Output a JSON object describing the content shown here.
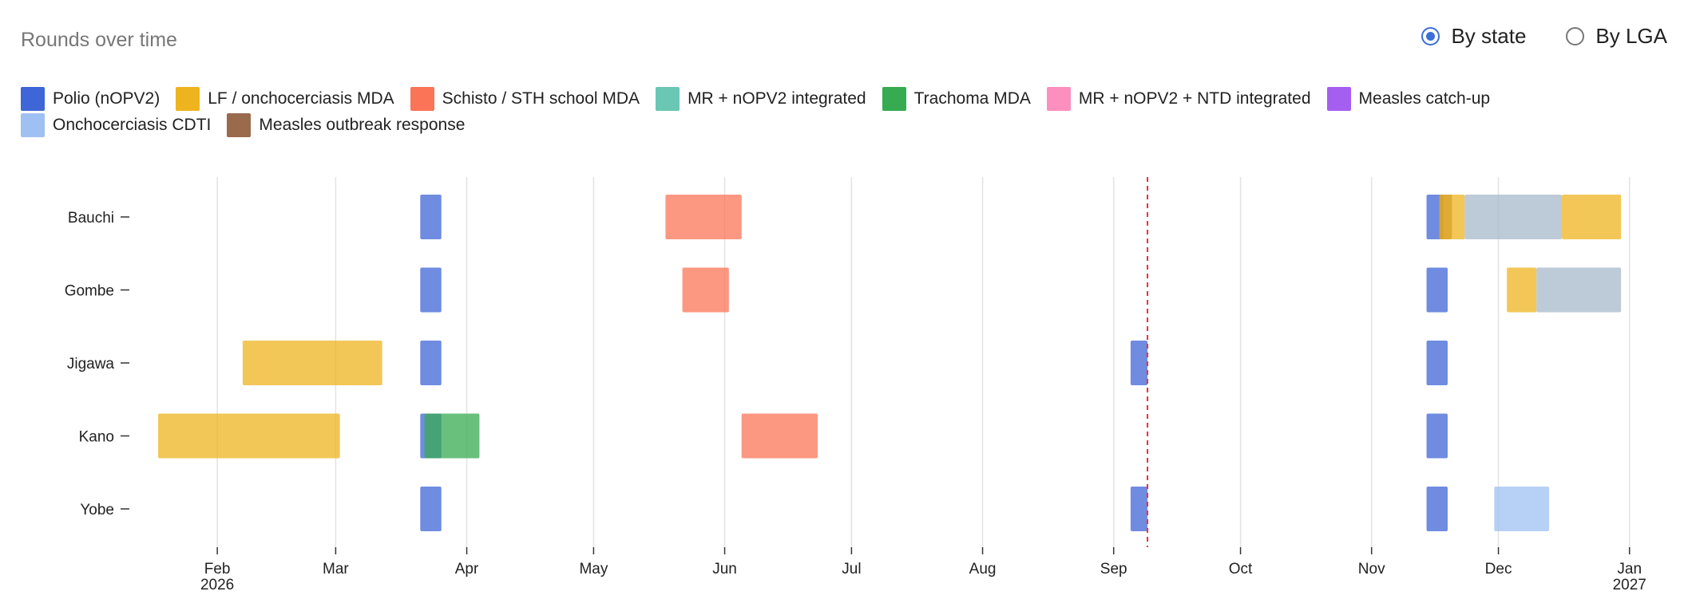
{
  "header": {
    "title": "Rounds over time"
  },
  "view_toggle": {
    "options": [
      {
        "label": "By state",
        "selected": true
      },
      {
        "label": "By LGA",
        "selected": false
      }
    ]
  },
  "legend": {
    "items": [
      {
        "label": "Polio (nOPV2)",
        "color": "#3f66d6"
      },
      {
        "label": "LF / onchocerciasis MDA",
        "color": "#eeb41f"
      },
      {
        "label": "Schisto / STH school MDA",
        "color": "#fb7457"
      },
      {
        "label": "MR + nOPV2 integrated",
        "color": "#69c7b3"
      },
      {
        "label": "Trachoma MDA",
        "color": "#37ab51"
      },
      {
        "label": "MR + nOPV2 + NTD integrated",
        "color": "#fd8fbe"
      },
      {
        "label": "Measles catch-up",
        "color": "#a45ff0"
      },
      {
        "label": "Onchocerciasis CDTI",
        "color": "#9fc0f2"
      },
      {
        "label": "Measles outbreak response",
        "color": "#9a6a4c"
      }
    ]
  },
  "chart_data": {
    "type": "timeline",
    "title": "Rounds over time",
    "rows": [
      "Bauchi",
      "Gombe",
      "Jigawa",
      "Kano",
      "Yobe"
    ],
    "x_range": [
      "2026-01-18",
      "2027-01-02"
    ],
    "x_ticks": [
      {
        "date": "2026-02-01",
        "label": "Feb",
        "sublabel": "2026"
      },
      {
        "date": "2026-03-01",
        "label": "Mar",
        "sublabel": ""
      },
      {
        "date": "2026-04-01",
        "label": "Apr",
        "sublabel": ""
      },
      {
        "date": "2026-05-01",
        "label": "May",
        "sublabel": ""
      },
      {
        "date": "2026-06-01",
        "label": "Jun",
        "sublabel": ""
      },
      {
        "date": "2026-07-01",
        "label": "Jul",
        "sublabel": ""
      },
      {
        "date": "2026-08-01",
        "label": "Aug",
        "sublabel": ""
      },
      {
        "date": "2026-09-01",
        "label": "Sep",
        "sublabel": ""
      },
      {
        "date": "2026-10-01",
        "label": "Oct",
        "sublabel": ""
      },
      {
        "date": "2026-11-01",
        "label": "Nov",
        "sublabel": ""
      },
      {
        "date": "2026-12-01",
        "label": "Dec",
        "sublabel": ""
      },
      {
        "date": "2027-01-01",
        "label": "Jan",
        "sublabel": "2027"
      }
    ],
    "grid": true,
    "legend_position": "top-left",
    "today_marker": {
      "date": "2026-09-09",
      "color": "#e5323e"
    },
    "campaigns": [
      {
        "row": "Bauchi",
        "type": "Polio (nOPV2)",
        "start": "2026-03-21",
        "end": "2026-03-26",
        "color": "#3f66d6"
      },
      {
        "row": "Bauchi",
        "type": "Schisto / STH school MDA",
        "start": "2026-05-18",
        "end": "2026-06-05",
        "color": "#fb7457"
      },
      {
        "row": "Bauchi",
        "type": "Polio (nOPV2)",
        "start": "2026-11-14",
        "end": "2026-11-18",
        "color": "#3f66d6"
      },
      {
        "row": "Bauchi",
        "type": "Measles outbreak response",
        "start": "2026-11-17",
        "end": "2026-11-20",
        "color": "#9a6a4c"
      },
      {
        "row": "Bauchi",
        "type": "LF / onchocerciasis MDA",
        "start": "2026-11-17",
        "end": "2026-11-23",
        "color": "#eeb41f"
      },
      {
        "row": "Bauchi",
        "type": "",
        "start": "2026-11-23",
        "end": "2026-12-16",
        "color": "#a7b8cb"
      },
      {
        "row": "Bauchi",
        "type": "LF / onchocerciasis MDA",
        "start": "2026-12-16",
        "end": "2026-12-30",
        "color": "#eeb41f"
      },
      {
        "row": "Gombe",
        "type": "Polio (nOPV2)",
        "start": "2026-03-21",
        "end": "2026-03-26",
        "color": "#3f66d6"
      },
      {
        "row": "Gombe",
        "type": "Schisto / STH school MDA",
        "start": "2026-05-22",
        "end": "2026-06-02",
        "color": "#fb7457"
      },
      {
        "row": "Gombe",
        "type": "Polio (nOPV2)",
        "start": "2026-11-14",
        "end": "2026-11-19",
        "color": "#3f66d6"
      },
      {
        "row": "Gombe",
        "type": "LF / onchocerciasis MDA",
        "start": "2026-12-03",
        "end": "2026-12-10",
        "color": "#eeb41f"
      },
      {
        "row": "Gombe",
        "type": "",
        "start": "2026-12-10",
        "end": "2026-12-30",
        "color": "#a7b8cb"
      },
      {
        "row": "Jigawa",
        "type": "LF / onchocerciasis MDA",
        "start": "2026-02-07",
        "end": "2026-03-12",
        "color": "#eeb41f"
      },
      {
        "row": "Jigawa",
        "type": "Polio (nOPV2)",
        "start": "2026-03-21",
        "end": "2026-03-26",
        "color": "#3f66d6"
      },
      {
        "row": "Jigawa",
        "type": "Polio (nOPV2)",
        "start": "2026-09-05",
        "end": "2026-09-09",
        "color": "#3f66d6"
      },
      {
        "row": "Jigawa",
        "type": "Polio (nOPV2)",
        "start": "2026-11-14",
        "end": "2026-11-19",
        "color": "#3f66d6"
      },
      {
        "row": "Kano",
        "type": "LF / onchocerciasis MDA",
        "start": "2026-01-18",
        "end": "2026-03-02",
        "color": "#eeb41f"
      },
      {
        "row": "Kano",
        "type": "Polio (nOPV2)",
        "start": "2026-03-21",
        "end": "2026-03-26",
        "color": "#3f66d6"
      },
      {
        "row": "Kano",
        "type": "Trachoma MDA",
        "start": "2026-03-22",
        "end": "2026-04-04",
        "color": "#37ab51"
      },
      {
        "row": "Kano",
        "type": "Schisto / STH school MDA",
        "start": "2026-06-05",
        "end": "2026-06-23",
        "color": "#fb7457"
      },
      {
        "row": "Kano",
        "type": "Polio (nOPV2)",
        "start": "2026-11-14",
        "end": "2026-11-19",
        "color": "#3f66d6"
      },
      {
        "row": "Yobe",
        "type": "Polio (nOPV2)",
        "start": "2026-03-21",
        "end": "2026-03-26",
        "color": "#3f66d6"
      },
      {
        "row": "Yobe",
        "type": "Polio (nOPV2)",
        "start": "2026-09-05",
        "end": "2026-09-09",
        "color": "#3f66d6"
      },
      {
        "row": "Yobe",
        "type": "Polio (nOPV2)",
        "start": "2026-11-14",
        "end": "2026-11-19",
        "color": "#3f66d6"
      },
      {
        "row": "Yobe",
        "type": "Onchocerciasis CDTI",
        "start": "2026-11-30",
        "end": "2026-12-13",
        "color": "#9fc0f2"
      }
    ]
  }
}
